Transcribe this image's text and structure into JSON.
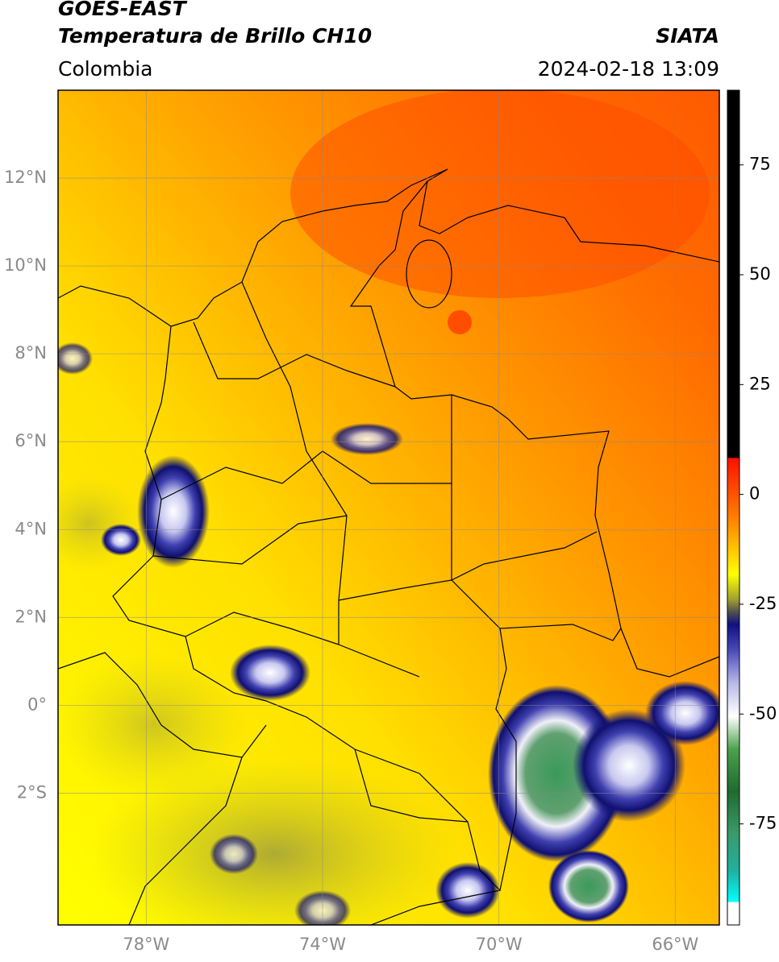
{
  "map": {
    "title": "GOES-EAST",
    "subtitle": "Temperatura de Brillo CH10",
    "source": "SIATA",
    "region": "Colombia",
    "datetime": "2024-02-18 13:09",
    "lonlim": [
      -80,
      -65
    ],
    "latlim": [
      -5,
      14
    ],
    "lonticks": [
      {
        "value": -78,
        "label": "78°W"
      },
      {
        "value": -74,
        "label": "74°W"
      },
      {
        "value": -70,
        "label": "70°W"
      },
      {
        "value": -66,
        "label": "66°W"
      }
    ],
    "latticks": [
      {
        "value": 12,
        "label": "12°N"
      },
      {
        "value": 10,
        "label": "10°N"
      },
      {
        "value": 8,
        "label": "8°N"
      },
      {
        "value": 6,
        "label": "6°N"
      },
      {
        "value": 4,
        "label": "4°N"
      },
      {
        "value": 2,
        "label": "2°N"
      },
      {
        "value": 0,
        "label": "0°"
      },
      {
        "value": -2,
        "label": "2°S"
      }
    ],
    "grid": true,
    "colorbar": {
      "clim": [
        -98,
        92
      ],
      "ticks": [
        75,
        50,
        25,
        0,
        -25,
        -50,
        -75
      ]
    }
  }
}
